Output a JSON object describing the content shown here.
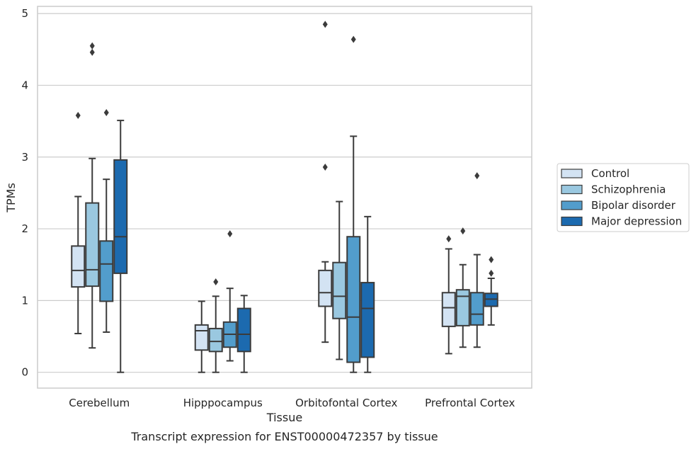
{
  "chart_data": {
    "type": "boxplot",
    "caption": "Transcript expression for ENST00000472357 by tissue",
    "xlabel": "Tissue",
    "ylabel": "TPMs",
    "ylim": [
      -0.22,
      5.1
    ],
    "yticks": [
      0,
      1,
      2,
      3,
      4,
      5
    ],
    "grid": true,
    "legend_position": "right",
    "categories": [
      "Cerebellum",
      "Hipppocampus",
      "Orbitofontal Cortex",
      "Prefrontal Cortex"
    ],
    "series": [
      {
        "name": "Control",
        "color": "#d3e3f3",
        "boxes": [
          {
            "whislo": 0.54,
            "q1": 1.19,
            "med": 1.42,
            "q3": 1.76,
            "whishi": 2.45,
            "fliers": [
              3.58
            ]
          },
          {
            "whislo": 0.0,
            "q1": 0.31,
            "med": 0.58,
            "q3": 0.66,
            "whishi": 0.99,
            "fliers": []
          },
          {
            "whislo": 0.42,
            "q1": 0.92,
            "med": 1.11,
            "q3": 1.42,
            "whishi": 1.54,
            "fliers": [
              2.86,
              4.85
            ]
          },
          {
            "whislo": 0.26,
            "q1": 0.64,
            "med": 0.9,
            "q3": 1.11,
            "whishi": 1.72,
            "fliers": [
              1.86
            ]
          }
        ]
      },
      {
        "name": "Schizophrenia",
        "color": "#9ac8e0",
        "boxes": [
          {
            "whislo": 0.34,
            "q1": 1.2,
            "med": 1.43,
            "q3": 2.36,
            "whishi": 2.98,
            "fliers": [
              4.46,
              4.55
            ]
          },
          {
            "whislo": 0.0,
            "q1": 0.29,
            "med": 0.43,
            "q3": 0.61,
            "whishi": 1.06,
            "fliers": [
              1.26
            ]
          },
          {
            "whislo": 0.18,
            "q1": 0.75,
            "med": 1.06,
            "q3": 1.53,
            "whishi": 2.38,
            "fliers": []
          },
          {
            "whislo": 0.35,
            "q1": 0.65,
            "med": 1.06,
            "q3": 1.15,
            "whishi": 1.5,
            "fliers": [
              1.97
            ]
          }
        ]
      },
      {
        "name": "Bipolar disorder",
        "color": "#529dcc",
        "boxes": [
          {
            "whislo": 0.56,
            "q1": 0.99,
            "med": 1.51,
            "q3": 1.83,
            "whishi": 2.69,
            "fliers": [
              3.62
            ]
          },
          {
            "whislo": 0.16,
            "q1": 0.35,
            "med": 0.53,
            "q3": 0.7,
            "whishi": 1.17,
            "fliers": [
              1.93
            ]
          },
          {
            "whislo": 0.0,
            "q1": 0.14,
            "med": 0.77,
            "q3": 1.89,
            "whishi": 3.29,
            "fliers": [
              4.64
            ]
          },
          {
            "whislo": 0.35,
            "q1": 0.66,
            "med": 0.81,
            "q3": 1.11,
            "whishi": 1.64,
            "fliers": [
              2.74
            ]
          }
        ]
      },
      {
        "name": "Major depression",
        "color": "#1c6aaf",
        "boxes": [
          {
            "whislo": 0.0,
            "q1": 1.38,
            "med": 1.89,
            "q3": 2.96,
            "whishi": 3.51,
            "fliers": []
          },
          {
            "whislo": 0.0,
            "q1": 0.29,
            "med": 0.53,
            "q3": 0.89,
            "whishi": 1.07,
            "fliers": []
          },
          {
            "whislo": 0.0,
            "q1": 0.21,
            "med": 0.89,
            "q3": 1.25,
            "whishi": 2.17,
            "fliers": []
          },
          {
            "whislo": 0.66,
            "q1": 0.92,
            "med": 1.02,
            "q3": 1.1,
            "whishi": 1.31,
            "fliers": [
              1.38,
              1.57
            ]
          }
        ]
      }
    ]
  }
}
